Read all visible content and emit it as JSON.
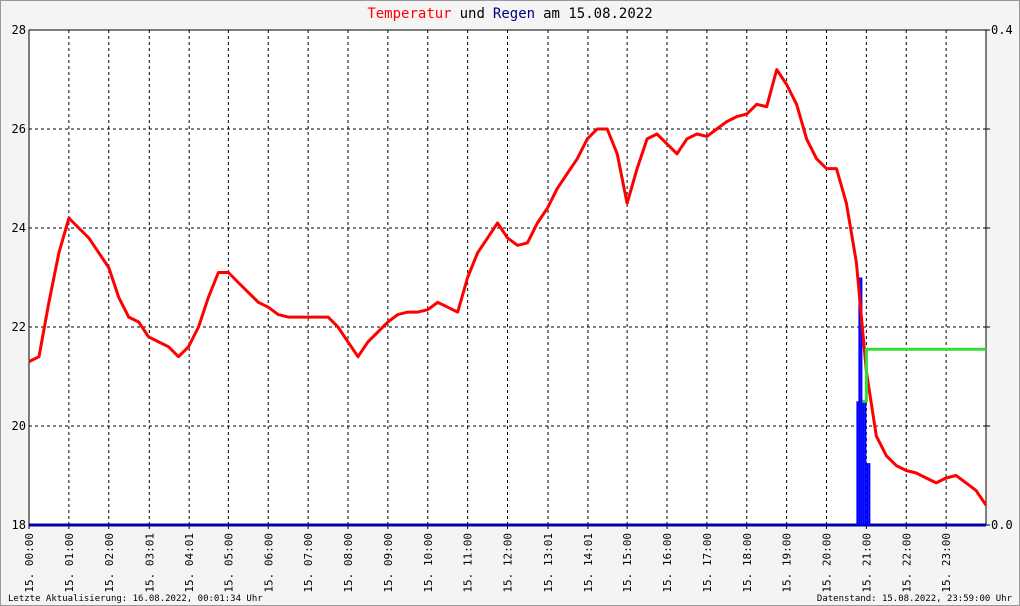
{
  "chart_data": {
    "type": "line",
    "title_parts": [
      {
        "text": "Temperatur",
        "color": "#ff0000"
      },
      {
        "text": "und",
        "color": "#000000"
      },
      {
        "text": "Regen",
        "color": "#000080"
      },
      {
        "text": "am 15.08.2022",
        "color": "#000000"
      }
    ],
    "xlim": [
      0,
      24
    ],
    "xticks": [
      {
        "value": 0,
        "label": "15. 00:00"
      },
      {
        "value": 1,
        "label": "15. 01:00"
      },
      {
        "value": 2,
        "label": "15. 02:00"
      },
      {
        "value": 3.017,
        "label": "15. 03:01"
      },
      {
        "value": 4.017,
        "label": "15. 04:01"
      },
      {
        "value": 5,
        "label": "15. 05:00"
      },
      {
        "value": 6,
        "label": "15. 06:00"
      },
      {
        "value": 7,
        "label": "15. 07:00"
      },
      {
        "value": 8,
        "label": "15. 08:00"
      },
      {
        "value": 9,
        "label": "15. 09:00"
      },
      {
        "value": 10,
        "label": "15. 10:00"
      },
      {
        "value": 11,
        "label": "15. 11:00"
      },
      {
        "value": 12,
        "label": "15. 12:00"
      },
      {
        "value": 13.017,
        "label": "15. 13:01"
      },
      {
        "value": 14.017,
        "label": "15. 14:01"
      },
      {
        "value": 15,
        "label": "15. 15:00"
      },
      {
        "value": 16,
        "label": "15. 16:00"
      },
      {
        "value": 17,
        "label": "15. 17:00"
      },
      {
        "value": 18,
        "label": "15. 18:00"
      },
      {
        "value": 19,
        "label": "15. 19:00"
      },
      {
        "value": 20,
        "label": "15. 20:00"
      },
      {
        "value": 21,
        "label": "15. 21:00"
      },
      {
        "value": 22,
        "label": "15. 22:00"
      },
      {
        "value": 23,
        "label": "15. 23:00"
      }
    ],
    "ylim": [
      18,
      28
    ],
    "yticks": [
      18,
      20,
      22,
      24,
      26,
      28
    ],
    "y2lim": [
      0,
      0.4
    ],
    "y2ticks": [
      {
        "value": 0,
        "label": "0.0"
      },
      0.4
    ],
    "grid": true,
    "series": [
      {
        "name": "Temperatur",
        "type": "line",
        "color": "#ff0000",
        "x": [
          0,
          0.25,
          0.5,
          0.75,
          1,
          1.25,
          1.5,
          1.75,
          2,
          2.25,
          2.5,
          2.75,
          3,
          3.25,
          3.5,
          3.75,
          4,
          4.25,
          4.5,
          4.75,
          5,
          5.25,
          5.5,
          5.75,
          6,
          6.25,
          6.5,
          6.75,
          7,
          7.25,
          7.5,
          7.75,
          8,
          8.25,
          8.5,
          8.75,
          9,
          9.25,
          9.5,
          9.75,
          10,
          10.25,
          10.5,
          10.75,
          11,
          11.25,
          11.5,
          11.75,
          12,
          12.25,
          12.5,
          12.75,
          13,
          13.25,
          13.5,
          13.75,
          14,
          14.25,
          14.5,
          14.75,
          15,
          15.25,
          15.5,
          15.75,
          16,
          16.25,
          16.5,
          16.75,
          17,
          17.25,
          17.5,
          17.75,
          18,
          18.25,
          18.5,
          18.75,
          19,
          19.25,
          19.5,
          19.75,
          20,
          20.25,
          20.5,
          20.75,
          21,
          21.25,
          21.5,
          21.75,
          22,
          22.25,
          22.5,
          22.75,
          23,
          23.25,
          23.5,
          23.75,
          24
        ],
        "values": [
          21.3,
          21.4,
          22.5,
          23.5,
          24.2,
          24.0,
          23.8,
          23.5,
          23.2,
          22.6,
          22.2,
          22.1,
          21.8,
          21.7,
          21.6,
          21.4,
          21.6,
          22.0,
          22.6,
          23.1,
          23.1,
          22.9,
          22.7,
          22.5,
          22.4,
          22.25,
          22.2,
          22.2,
          22.2,
          22.2,
          22.2,
          22.0,
          21.7,
          21.4,
          21.7,
          21.9,
          22.1,
          22.25,
          22.3,
          22.3,
          22.35,
          22.5,
          22.4,
          22.3,
          23.0,
          23.5,
          23.8,
          24.1,
          23.8,
          23.65,
          23.7,
          24.1,
          24.4,
          24.8,
          25.1,
          25.4,
          25.8,
          26.0,
          26.0,
          25.5,
          24.5,
          25.2,
          25.8,
          25.9,
          25.7,
          25.5,
          25.8,
          25.9,
          25.85,
          26.0,
          26.15,
          26.25,
          26.3,
          26.5,
          26.45,
          27.2,
          26.9,
          26.5,
          25.8,
          25.4,
          25.2,
          25.2,
          24.5,
          23.3,
          21.1,
          19.8,
          19.4,
          19.2,
          19.1,
          19.05,
          18.95,
          18.85,
          18.95,
          19.0,
          18.85,
          18.7,
          18.4
        ]
      },
      {
        "name": "Regen",
        "type": "bar",
        "axis": "y2",
        "color": "#0000ff",
        "x": [
          20.75,
          20.8,
          20.85,
          20.9,
          20.95,
          21.0,
          21.05
        ],
        "values": [
          0.1,
          0.2,
          0.2,
          0.1,
          0.1,
          0.05,
          0.05
        ]
      },
      {
        "type": "line",
        "axis": "y2",
        "color": "#33dd33",
        "x": [
          20.9,
          21.0,
          21.0,
          24.0
        ],
        "values": [
          0.1,
          0.1,
          0.142,
          0.142
        ]
      }
    ],
    "footer_left": "Letzte Aktualisierung: 16.08.2022, 00:01:34 Uhr",
    "footer_right": "Datenstand: 15.08.2022, 23:59:00 Uhr"
  }
}
